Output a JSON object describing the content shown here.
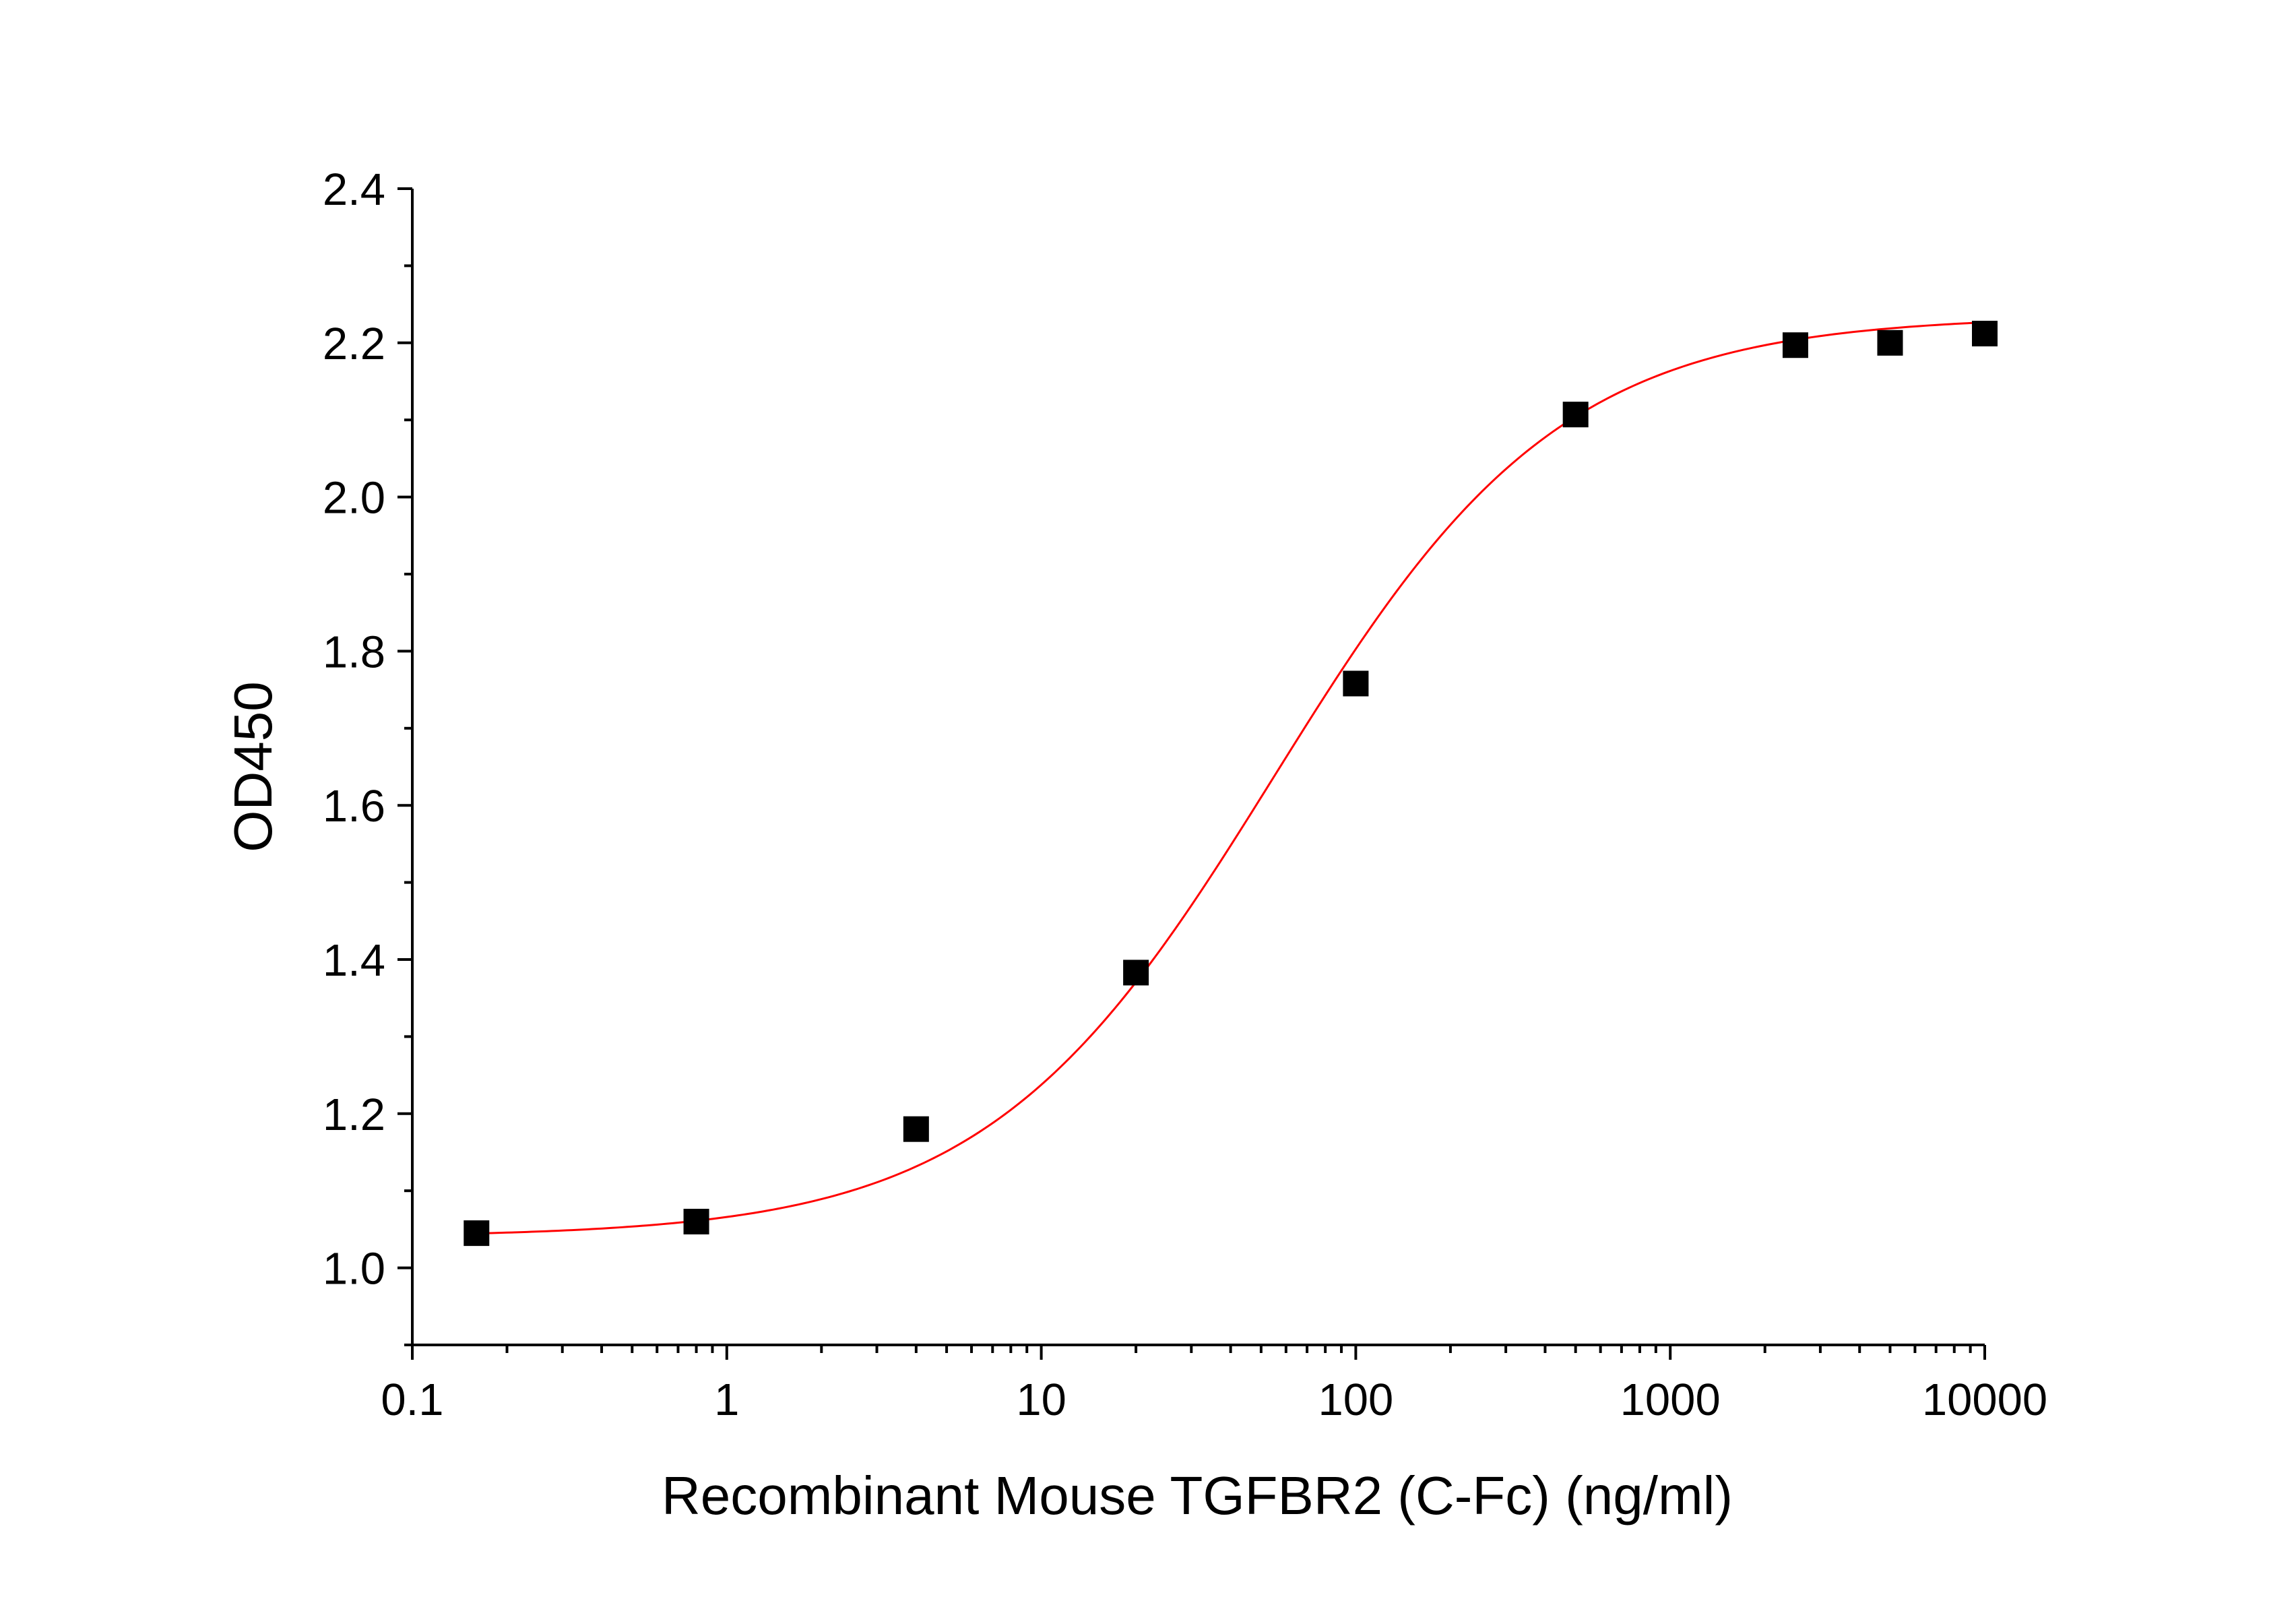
{
  "chart_data": {
    "type": "scatter",
    "title": "",
    "xlabel": "Recombinant Mouse TGFBR2 (C-Fc) (ng/ml)",
    "ylabel": "OD450",
    "xscale": "log",
    "xlim": [
      0.1,
      10000
    ],
    "ylim": [
      0.9,
      2.4
    ],
    "grid": false,
    "legend": "none",
    "x_ticks": [
      {
        "value": 0.1,
        "label": "0.1"
      },
      {
        "value": 1,
        "label": "1"
      },
      {
        "value": 10,
        "label": "10"
      },
      {
        "value": 100,
        "label": "100"
      },
      {
        "value": 1000,
        "label": "1000"
      },
      {
        "value": 10000,
        "label": "10000"
      }
    ],
    "y_ticks": [
      {
        "value": 1.0,
        "label": "1.0"
      },
      {
        "value": 1.2,
        "label": "1.2"
      },
      {
        "value": 1.4,
        "label": "1.4"
      },
      {
        "value": 1.6,
        "label": "1.6"
      },
      {
        "value": 1.8,
        "label": "1.8"
      },
      {
        "value": 2.0,
        "label": "2.0"
      },
      {
        "value": 2.2,
        "label": "2.2"
      },
      {
        "value": 2.4,
        "label": "2.4"
      }
    ],
    "series": [
      {
        "points": [
          {
            "x": 0.16,
            "y": 1.045
          },
          {
            "x": 0.8,
            "y": 1.06
          },
          {
            "x": 4,
            "y": 1.18
          },
          {
            "x": 20,
            "y": 1.383
          },
          {
            "x": 100,
            "y": 1.758
          },
          {
            "x": 500,
            "y": 2.107
          },
          {
            "x": 2500,
            "y": 2.197
          },
          {
            "x": 5000,
            "y": 2.2
          },
          {
            "x": 10000,
            "y": 2.212
          }
        ],
        "marker_color": "#000000"
      }
    ],
    "fit": {
      "model": "4PL",
      "bottom": 1.04,
      "top": 2.235,
      "ec50": 55,
      "hill": 0.95,
      "color": "#ff0000"
    }
  }
}
